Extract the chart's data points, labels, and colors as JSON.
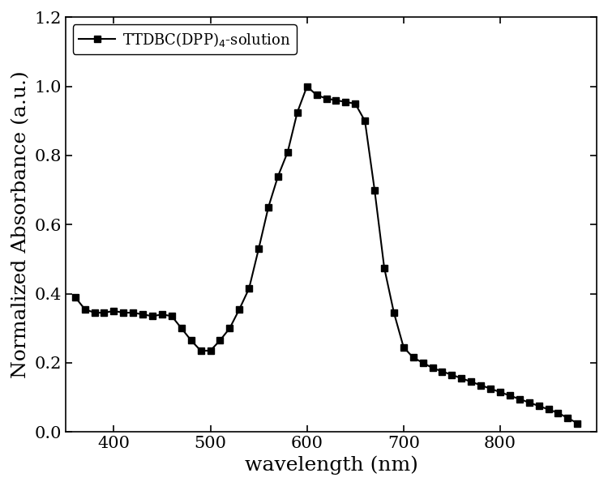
{
  "x": [
    360,
    370,
    380,
    390,
    400,
    410,
    420,
    430,
    440,
    450,
    460,
    470,
    480,
    490,
    500,
    510,
    520,
    530,
    540,
    550,
    560,
    570,
    580,
    590,
    600,
    610,
    620,
    630,
    640,
    650,
    660,
    670,
    680,
    690,
    700,
    710,
    720,
    730,
    740,
    750,
    760,
    770,
    780,
    790,
    800,
    810,
    820,
    830,
    840,
    850,
    860,
    870,
    880
  ],
  "y": [
    0.39,
    0.355,
    0.345,
    0.345,
    0.35,
    0.345,
    0.345,
    0.34,
    0.335,
    0.34,
    0.335,
    0.3,
    0.265,
    0.235,
    0.235,
    0.265,
    0.3,
    0.355,
    0.415,
    0.53,
    0.65,
    0.74,
    0.81,
    0.925,
    1.0,
    0.975,
    0.965,
    0.96,
    0.955,
    0.95,
    0.9,
    0.7,
    0.475,
    0.345,
    0.245,
    0.215,
    0.2,
    0.185,
    0.175,
    0.165,
    0.155,
    0.145,
    0.135,
    0.125,
    0.115,
    0.105,
    0.095,
    0.085,
    0.075,
    0.065,
    0.055,
    0.04,
    0.025
  ],
  "xlabel": "wavelength (nm)",
  "ylabel": "Normalized Absorbance (a.u.)",
  "legend_label": "TTDBC(DPP)$_4$-solution",
  "xlim": [
    350,
    900
  ],
  "ylim": [
    0.0,
    1.2
  ],
  "xticks": [
    400,
    500,
    600,
    700,
    800
  ],
  "yticks": [
    0.0,
    0.2,
    0.4,
    0.6,
    0.8,
    1.0,
    1.2
  ],
  "line_color": "#000000",
  "marker": "s",
  "markersize": 6,
  "linewidth": 1.5,
  "label_fontsize": 18,
  "tick_fontsize": 15,
  "legend_fontsize": 13
}
